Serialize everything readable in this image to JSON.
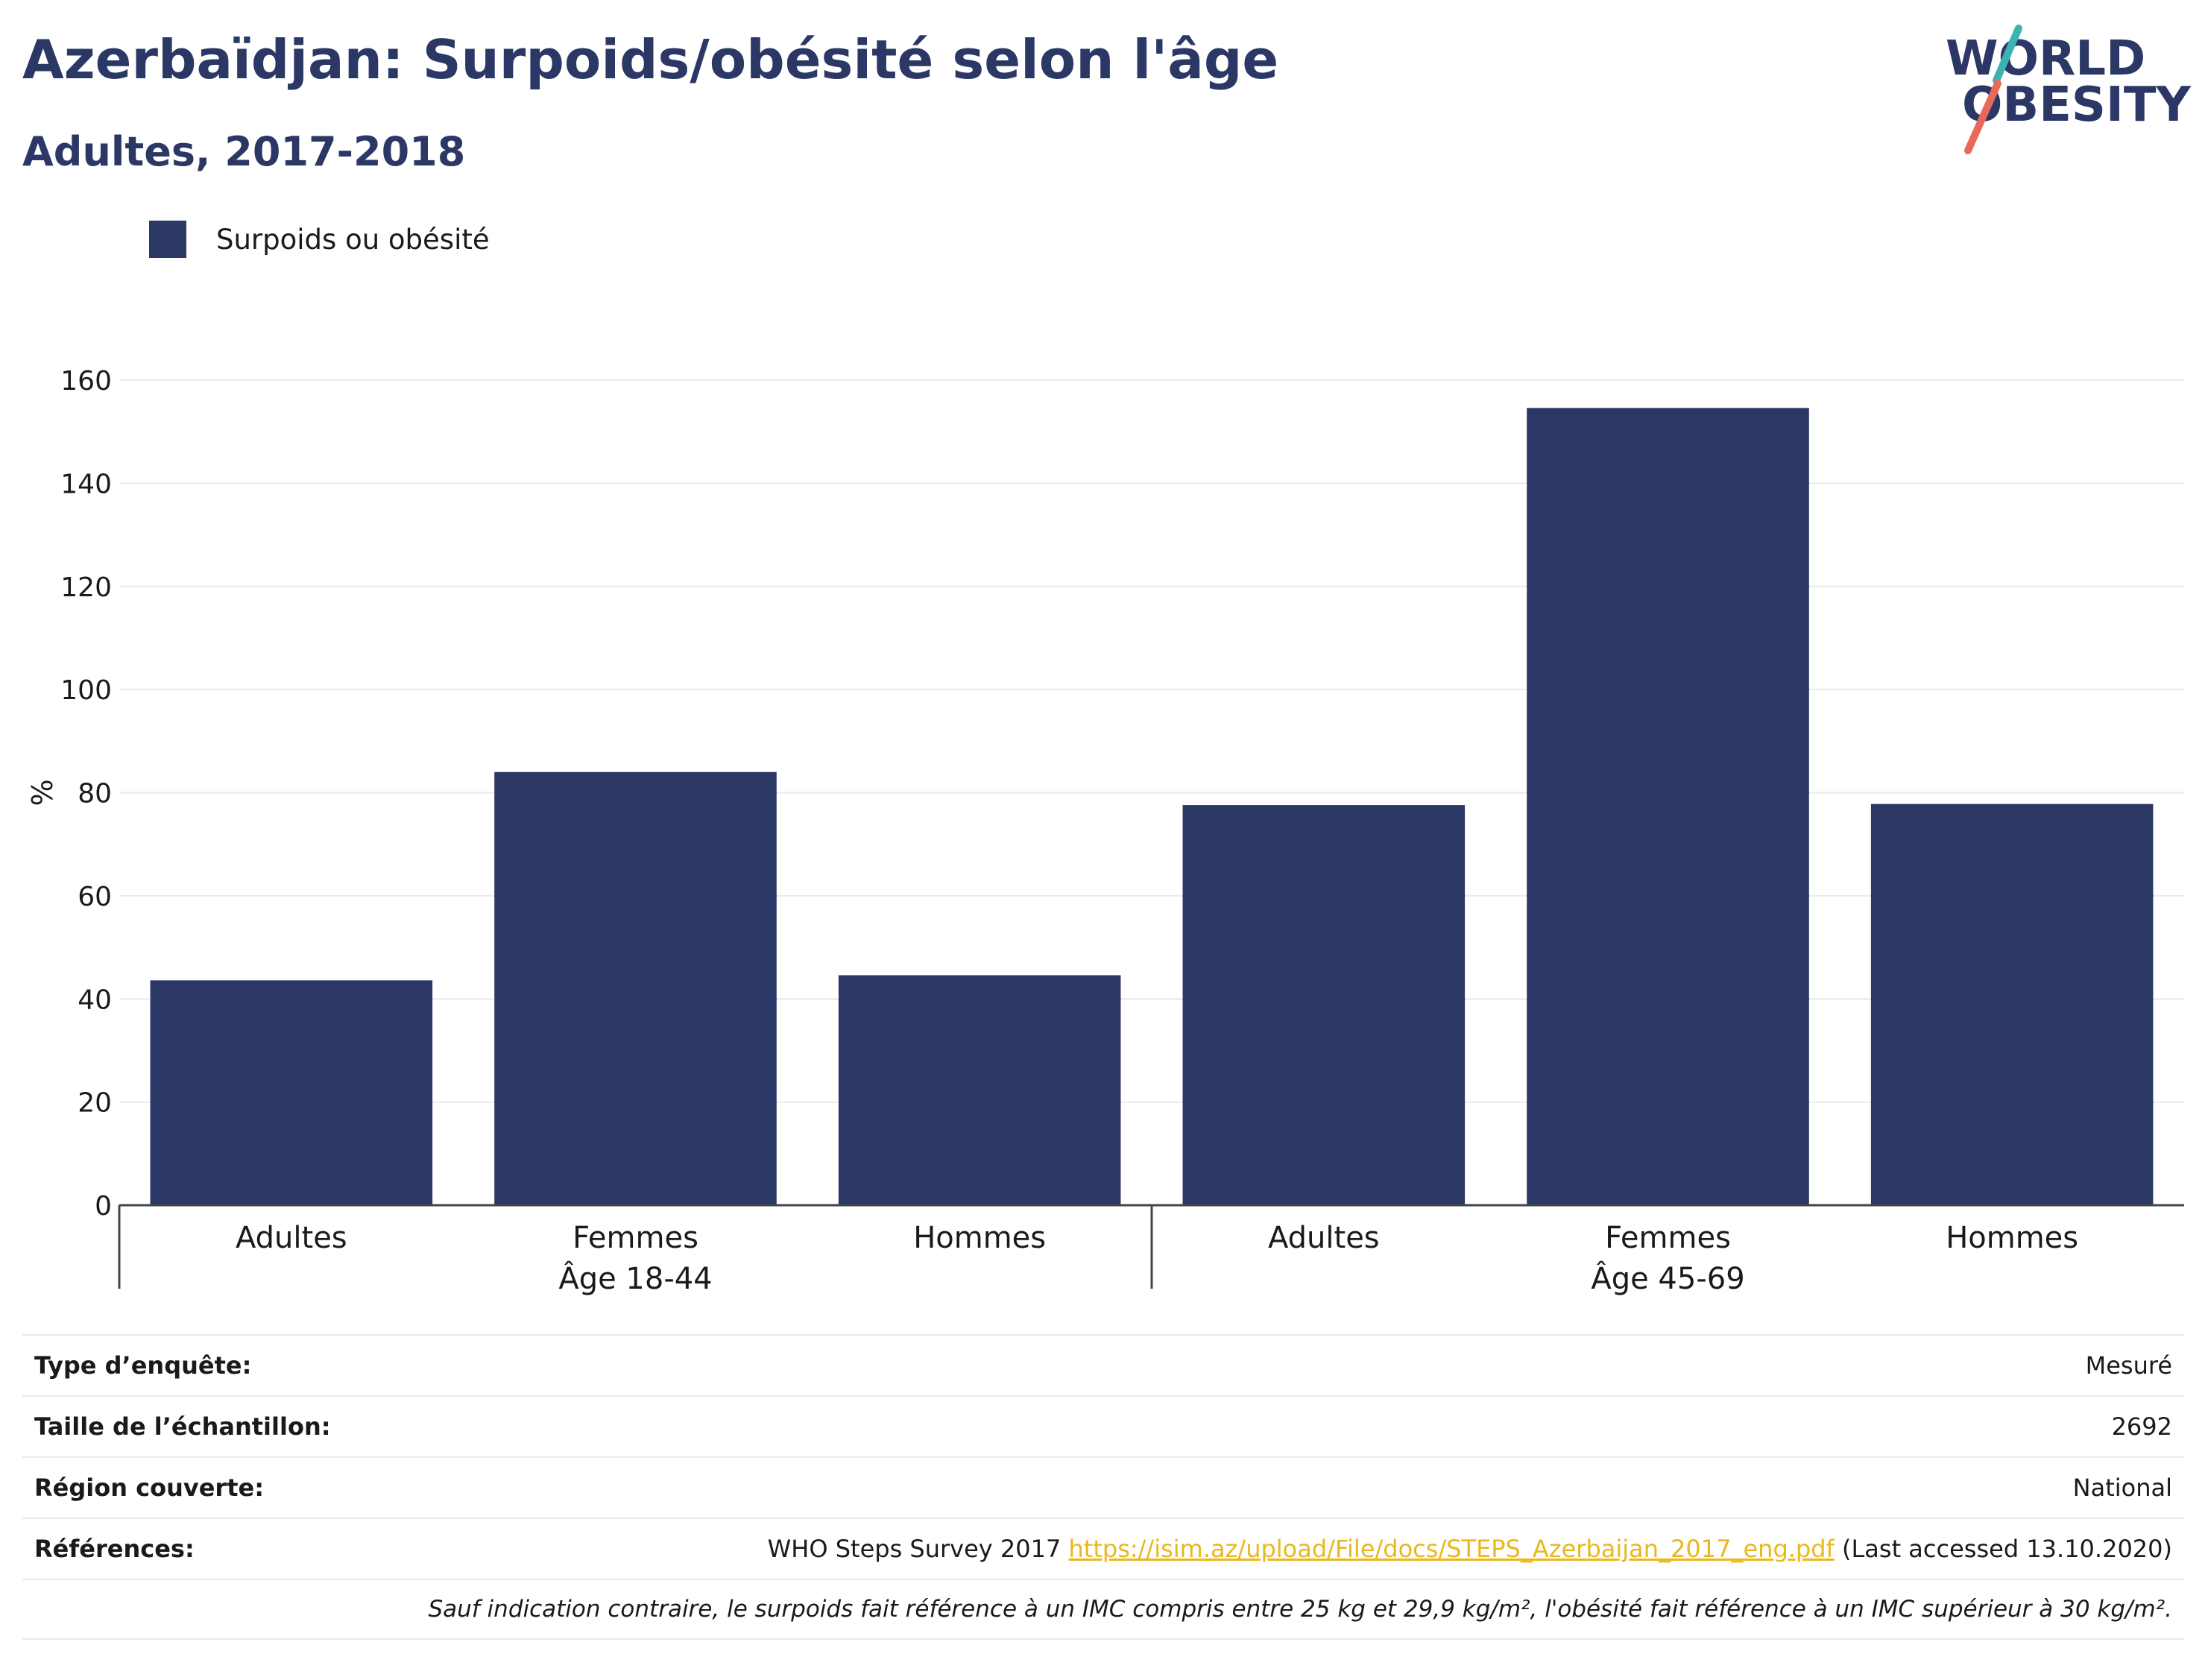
{
  "title": "Azerbaïdjan: Surpoids/obésité selon l'âge",
  "subtitle": "Adultes, 2017-2018",
  "logo": {
    "line1": "WORLD",
    "line2": "OBESITY",
    "colors": {
      "text": "#2b3765",
      "slash_top": "#3bb3b3",
      "slash_bottom": "#e8695a"
    }
  },
  "colors": {
    "bar": "#2b3765",
    "grid": "#e6e9ee",
    "axis": "#444444",
    "link": "#e9b81c"
  },
  "chart_data": {
    "type": "bar",
    "title": "Azerbaïdjan: Surpoids/obésité selon l'âge",
    "subtitle": "Adultes, 2017-2018",
    "ylabel": "%",
    "xlabel": "",
    "ylim": [
      0,
      160
    ],
    "yticks": [
      0,
      20,
      40,
      60,
      80,
      100,
      120,
      140,
      160
    ],
    "grid": true,
    "legend_position": "top-left",
    "groups": [
      {
        "label": "Âge 18-44",
        "categories": [
          "Adultes",
          "Femmes",
          "Hommes"
        ]
      },
      {
        "label": "Âge 45-69",
        "categories": [
          "Adultes",
          "Femmes",
          "Hommes"
        ]
      }
    ],
    "categories": [
      "Adultes",
      "Femmes",
      "Hommes",
      "Adultes",
      "Femmes",
      "Hommes"
    ],
    "series": [
      {
        "name": "Surpoids ou obésité",
        "values": [
          43.6,
          84.0,
          44.6,
          77.6,
          154.6,
          77.8
        ]
      }
    ]
  },
  "info": {
    "survey_type_label": "Type d’enquête:",
    "survey_type_value": "Mesuré",
    "sample_size_label": "Taille de l’échantillon:",
    "sample_size_value": "2692",
    "region_label": "Région couverte:",
    "region_value": "National",
    "references_label": "Références:",
    "references_text": "WHO Steps Survey 2017",
    "references_url": "https://isim.az/upload/File/docs/STEPS_Azerbaijan_2017_eng.pdf",
    "references_accessed": "(Last accessed 13.10.2020)",
    "note": "Sauf indication contraire, le surpoids fait référence à un IMC compris entre 25 kg et 29,9 kg/m², l'obésité fait référence à un IMC supérieur à 30 kg/m²."
  }
}
